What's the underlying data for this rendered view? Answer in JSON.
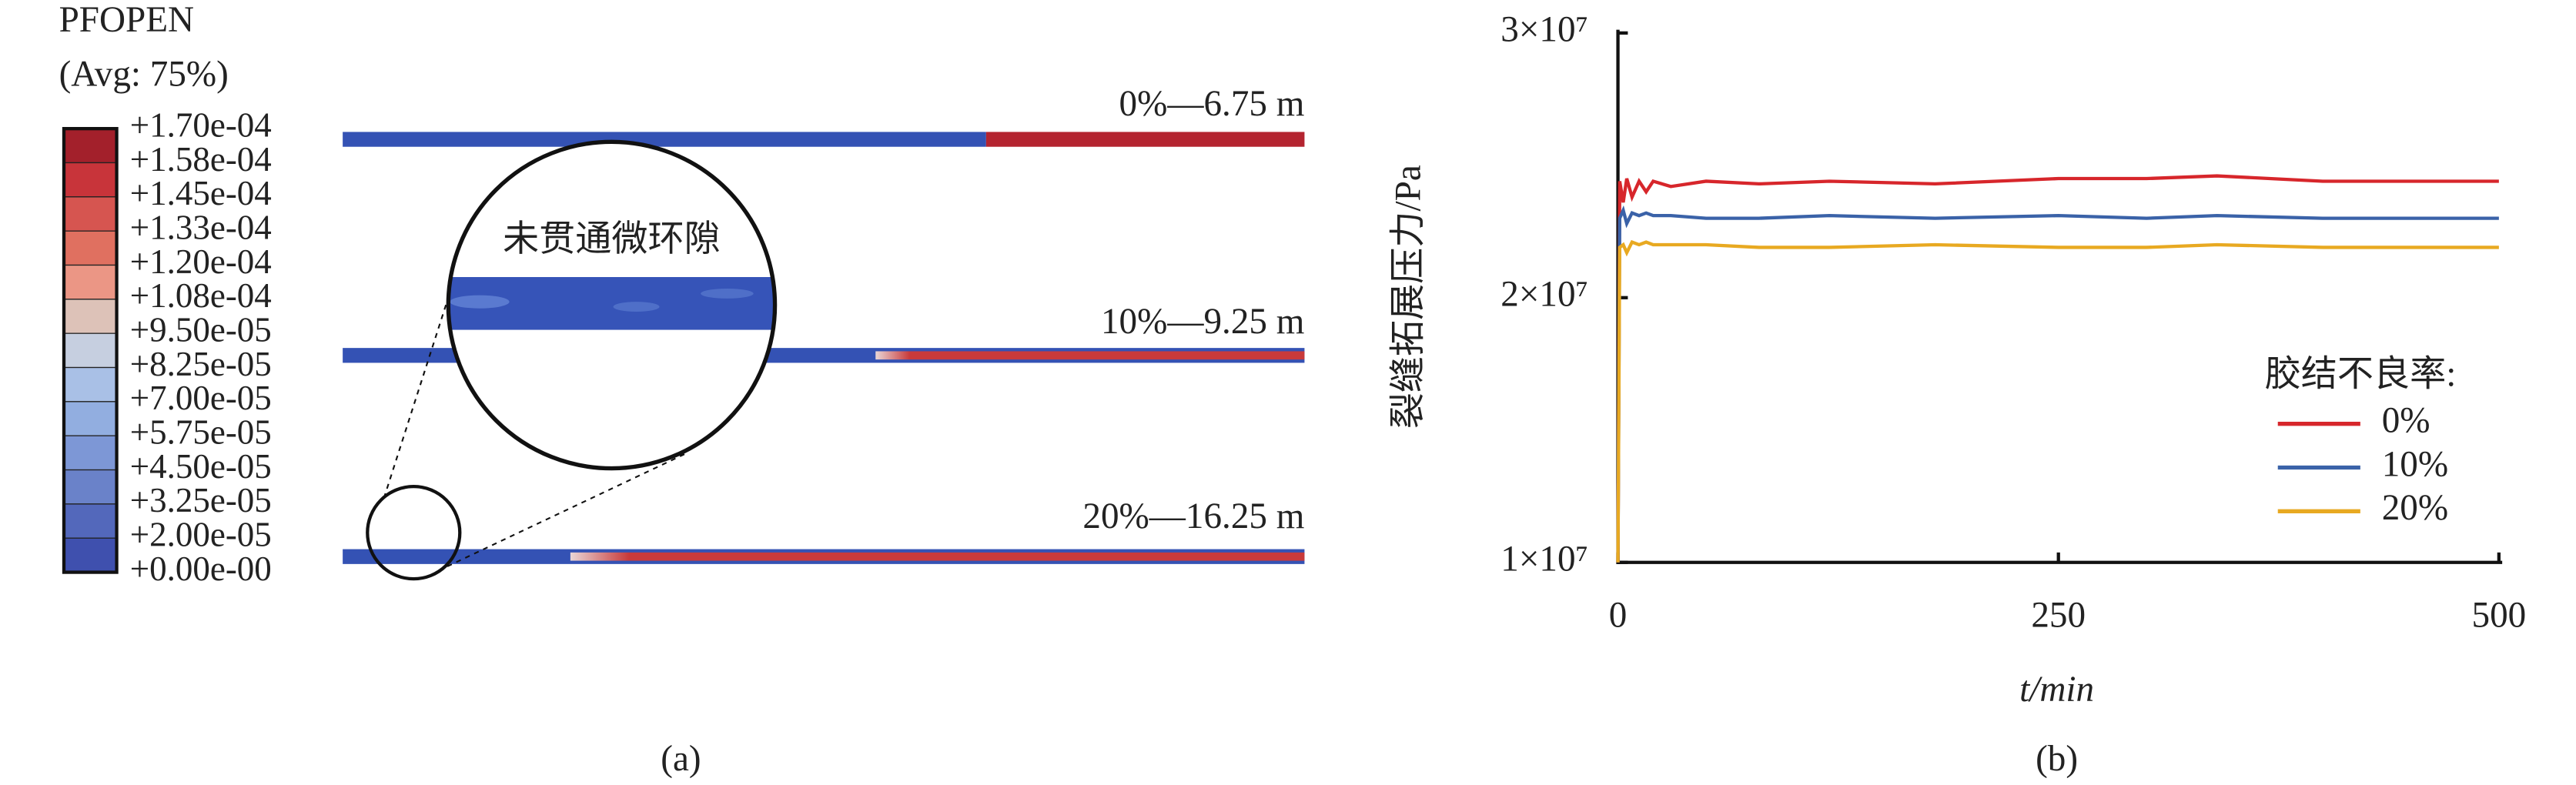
{
  "panel_a": {
    "legend_title": "PFOPEN",
    "legend_subtitle": "(Avg: 75%)",
    "legend_labels": [
      "+1.70e-04",
      "+1.58e-04",
      "+1.45e-04",
      "+1.33e-04",
      "+1.20e-04",
      "+1.08e-04",
      "+9.50e-05",
      "+8.25e-05",
      "+7.00e-05",
      "+5.75e-05",
      "+4.50e-05",
      "+3.25e-05",
      "+2.00e-05",
      "+0.00e-00"
    ],
    "strips": [
      {
        "label": "0%—6.75 m"
      },
      {
        "label": "10%—9.25 m"
      },
      {
        "label": "20%—16.25 m"
      }
    ],
    "zoom_label": "未贯通微环隙",
    "caption": "(a)"
  },
  "chart_data": {
    "type": "line",
    "xlabel": "t/min",
    "ylabel": "裂缝拓展压力/Pa",
    "caption": "(b)",
    "legend_title": "胶结不良率:",
    "x": [
      0,
      1,
      3,
      5,
      8,
      12,
      16,
      20,
      30,
      50,
      80,
      120,
      180,
      250,
      300,
      340,
      400,
      450,
      500
    ],
    "series": [
      {
        "name": "0%",
        "color": "#d7262b",
        "values": [
          10000000,
          24400000,
          23600000,
          24500000,
          23800000,
          24400000,
          24000000,
          24400000,
          24200000,
          24400000,
          24300000,
          24400000,
          24300000,
          24500000,
          24500000,
          24600000,
          24400000,
          24400000,
          24400000
        ]
      },
      {
        "name": "10%",
        "color": "#3a62a8",
        "values": [
          10000000,
          23000000,
          23300000,
          22800000,
          23200000,
          23100000,
          23200000,
          23100000,
          23100000,
          23000000,
          23000000,
          23100000,
          23000000,
          23100000,
          23000000,
          23100000,
          23000000,
          23000000,
          23000000
        ]
      },
      {
        "name": "20%",
        "color": "#e8a921",
        "values": [
          10000000,
          21900000,
          22000000,
          21700000,
          22100000,
          22000000,
          22100000,
          22000000,
          22000000,
          22000000,
          21900000,
          21900000,
          22000000,
          21900000,
          21900000,
          22000000,
          21900000,
          21900000,
          21900000
        ]
      }
    ],
    "xlim": [
      0,
      500
    ],
    "xticks": [
      0,
      250,
      500
    ],
    "ylim": [
      10000000,
      30000000
    ],
    "yticks": [
      {
        "value": 10000000,
        "label": "1×10⁷"
      },
      {
        "value": 20000000,
        "label": "2×10⁷"
      },
      {
        "value": 30000000,
        "label": "3×10⁷"
      }
    ]
  }
}
